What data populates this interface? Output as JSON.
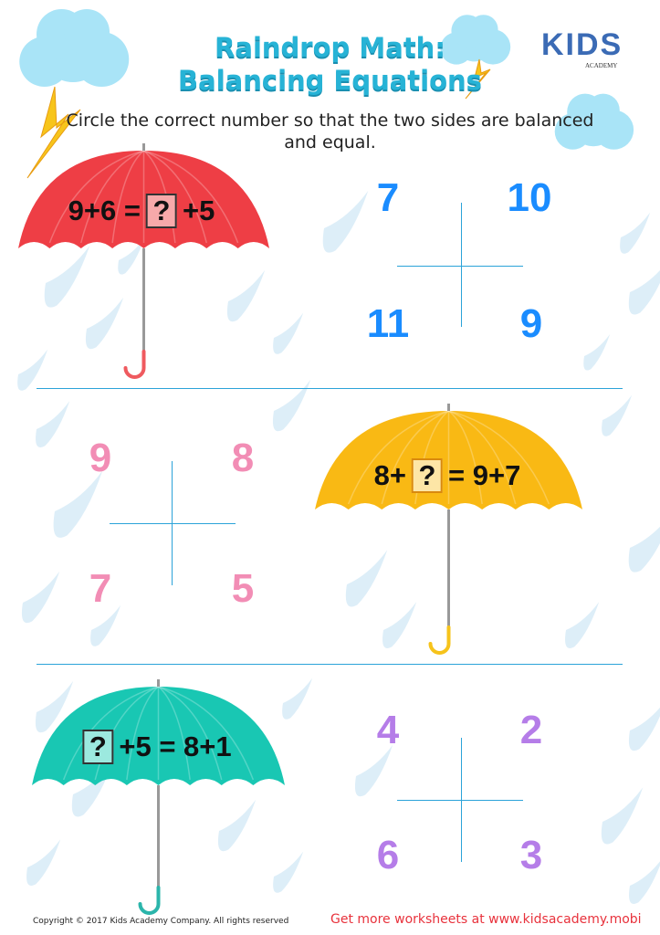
{
  "header": {
    "title_line1": "Raindrop Math:",
    "title_line2": "Balancing Equations",
    "instructions": "Circle the correct number so that the two sides are balanced and equal.",
    "logo_text": "KIDS",
    "logo_subtext": "ACADEMY"
  },
  "problems": [
    {
      "umbrella_color": "#ee3e45",
      "equation_left": "9+6 =",
      "unknown": "?",
      "equation_right": "+5",
      "answers_color": "#1a8cff",
      "answers": [
        "7",
        "10",
        "11",
        "9"
      ]
    },
    {
      "umbrella_color": "#f9b914",
      "equation_left": "8+",
      "unknown": "?",
      "equation_right": "= 9+7",
      "answers_color": "#f28db5",
      "answers": [
        "9",
        "8",
        "7",
        "5"
      ]
    },
    {
      "umbrella_color": "#19c7b3",
      "equation_left": "",
      "unknown": "?",
      "equation_right": "+5 = 8+1",
      "answers_color": "#b57de8",
      "answers": [
        "4",
        "2",
        "6",
        "3"
      ]
    }
  ],
  "footer": {
    "copyright": "Copyright © 2017 Kids Academy Company. All rights reserved",
    "promo": "Get more worksheets at www.kidsacademy.mobi"
  }
}
